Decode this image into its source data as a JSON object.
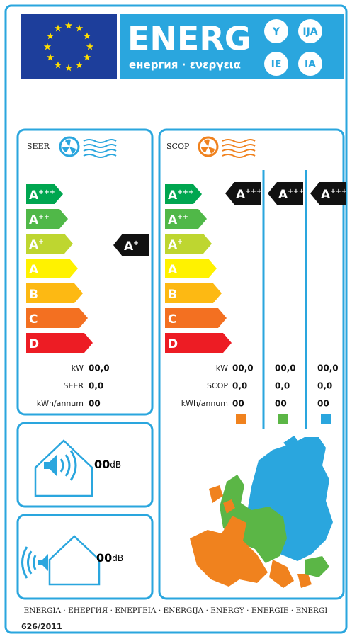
{
  "header": {
    "title": "ENERG",
    "subtitle": "енергия · ενεργεια",
    "badges": [
      "Y",
      "IJA",
      "IE",
      "IA"
    ]
  },
  "seer": {
    "label": "SEER",
    "classes": [
      {
        "letter": "A",
        "sup": "+++"
      },
      {
        "letter": "A",
        "sup": "++"
      },
      {
        "letter": "A",
        "sup": "+"
      },
      {
        "letter": "A",
        "sup": ""
      },
      {
        "letter": "B",
        "sup": ""
      },
      {
        "letter": "C",
        "sup": ""
      },
      {
        "letter": "D",
        "sup": ""
      }
    ],
    "rating": {
      "letter": "A",
      "sup": "+"
    },
    "rows": [
      {
        "label": "kW",
        "value": "00,0"
      },
      {
        "label": "SEER",
        "value": "0,0"
      },
      {
        "label": "kWh/annum",
        "value": "00"
      }
    ]
  },
  "scop": {
    "label": "SCOP",
    "classes": [
      {
        "letter": "A",
        "sup": "+++"
      },
      {
        "letter": "A",
        "sup": "++"
      },
      {
        "letter": "A",
        "sup": "+"
      },
      {
        "letter": "A",
        "sup": ""
      },
      {
        "letter": "B",
        "sup": ""
      },
      {
        "letter": "C",
        "sup": ""
      },
      {
        "letter": "D",
        "sup": ""
      }
    ],
    "ratings": [
      {
        "letter": "A",
        "sup": "+++"
      },
      {
        "letter": "A",
        "sup": "+++"
      },
      {
        "letter": "A",
        "sup": "+++"
      }
    ],
    "rows": [
      {
        "label": "kW",
        "values": [
          "00,0",
          "00,0",
          "00,0"
        ]
      },
      {
        "label": "SCOP",
        "values": [
          "0,0",
          "0,0",
          "0,0"
        ]
      },
      {
        "label": "kWh/annum",
        "values": [
          "00",
          "00",
          "00"
        ]
      }
    ]
  },
  "noise": [
    {
      "value": "00",
      "unit": "dB"
    },
    {
      "value": "00",
      "unit": "dB"
    }
  ],
  "footer": {
    "languages": "ENERGIA · ЕНЕРГИЯ · ΕΝΕΡΓΕΙΑ · ENERGIJA · ENERGY · ENERGIE · ENERGI",
    "regulation": "626/2011"
  }
}
